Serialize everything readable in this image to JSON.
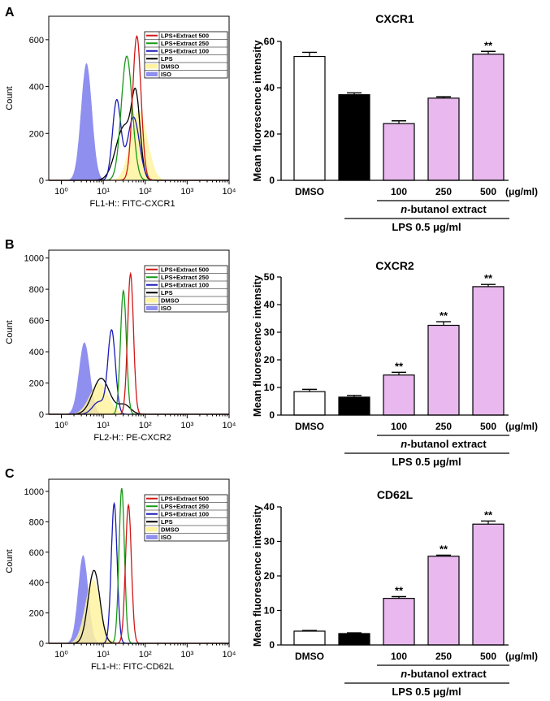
{
  "panel_letters": [
    "A",
    "B",
    "C"
  ],
  "colors": {
    "iso": "#8f8ff0",
    "dmso": "#fff3a0",
    "lps": "#000000",
    "extract100": "#1a1ab8",
    "extract250": "#159a15",
    "extract500": "#d01818",
    "bar_lps": "#000000",
    "bar_dmso": "#ffffff",
    "bar_extract": "#e8b8ee"
  },
  "histograms": [
    {
      "xlabel": "FL1-H:: FITC-CXCR1",
      "ylabel": "Count",
      "yticks": [
        0,
        200,
        400,
        600
      ],
      "ymax": 700,
      "xtick_labels": [
        "10⁰",
        "10¹",
        "10²",
        "10³",
        "10⁴"
      ],
      "legend": [
        "LPS+Extract 500",
        "LPS+Extract 250",
        "LPS+Extract 100",
        "LPS",
        "DMSO",
        "ISO"
      ],
      "peaks": {
        "iso": [
          [
            0.6,
            500,
            0.13
          ]
        ],
        "dmso": [
          [
            1.85,
            300,
            0.2
          ]
        ],
        "lps": [
          [
            1.5,
            230,
            0.2
          ],
          [
            1.78,
            300,
            0.1
          ]
        ],
        "extract100": [
          [
            1.32,
            340,
            0.1
          ],
          [
            1.72,
            270,
            0.14
          ]
        ],
        "extract250": [
          [
            1.56,
            530,
            0.13
          ]
        ],
        "extract500": [
          [
            1.8,
            615,
            0.1
          ]
        ]
      }
    },
    {
      "xlabel": "FL2-H:: PE-CXCR2",
      "ylabel": "Count",
      "yticks": [
        0,
        200,
        400,
        600,
        800,
        1000
      ],
      "ymax": 1050,
      "xtick_labels": [
        "10⁰",
        "10¹",
        "10²",
        "10³",
        "10⁴"
      ],
      "legend": [
        "LPS+Extract 500",
        "LPS+Extract 250",
        "LPS+Extract 100",
        "LPS",
        "DMSO",
        "ISO"
      ],
      "peaks": {
        "iso": [
          [
            0.55,
            460,
            0.13
          ]
        ],
        "dmso": [
          [
            0.9,
            200,
            0.22
          ]
        ],
        "lps": [
          [
            0.95,
            230,
            0.2
          ],
          [
            1.5,
            60,
            0.15
          ]
        ],
        "extract100": [
          [
            1.2,
            530,
            0.09
          ],
          [
            0.9,
            80,
            0.15
          ]
        ],
        "extract250": [
          [
            1.48,
            790,
            0.07
          ]
        ],
        "extract500": [
          [
            1.65,
            900,
            0.07
          ]
        ]
      }
    },
    {
      "xlabel": "FL1-H:: FITC-CD62L",
      "ylabel": "Count",
      "yticks": [
        0,
        200,
        400,
        600,
        800,
        1000
      ],
      "ymax": 1080,
      "xtick_labels": [
        "10⁰",
        "10¹",
        "10²",
        "10³",
        "10⁴"
      ],
      "legend": [
        "LPS+Extract 500",
        "LPS+Extract 250",
        "LPS+Extract 100",
        "LPS",
        "DMSO",
        "ISO"
      ],
      "peaks": {
        "iso": [
          [
            0.52,
            580,
            0.12
          ]
        ],
        "dmso": [
          [
            0.75,
            420,
            0.18
          ]
        ],
        "lps": [
          [
            0.78,
            480,
            0.14
          ]
        ],
        "extract100": [
          [
            1.26,
            920,
            0.07
          ]
        ],
        "extract250": [
          [
            1.44,
            1020,
            0.065
          ]
        ],
        "extract500": [
          [
            1.6,
            910,
            0.07
          ]
        ]
      }
    }
  ],
  "chart_data": [
    {
      "type": "bar",
      "title": "CXCR1",
      "ylabel": "Mean fluorescence intensity",
      "ylim": [
        0,
        60
      ],
      "yticks": [
        0,
        20,
        40,
        60
      ],
      "categories": [
        "DMSO",
        "",
        "100",
        "250",
        "500"
      ],
      "values": [
        53.5,
        37,
        24.5,
        35.5,
        54.5
      ],
      "errors": [
        1.8,
        0.8,
        1.2,
        0.6,
        1.2
      ],
      "significance": [
        "",
        "",
        "",
        "",
        "**"
      ],
      "unit_label": "(μg/ml)",
      "group_label_italic": "n",
      "group_label": "-butanol extract",
      "lps_label": "LPS 0.5 μg/ml"
    },
    {
      "type": "bar",
      "title": "CXCR2",
      "ylabel": "Mean fluorescence intensity",
      "ylim": [
        0,
        50
      ],
      "yticks": [
        0,
        10,
        20,
        30,
        40,
        50
      ],
      "categories": [
        "DMSO",
        "",
        "100",
        "250",
        "500"
      ],
      "values": [
        8.5,
        6.5,
        14.5,
        32.5,
        46.5
      ],
      "errors": [
        0.8,
        0.6,
        1.0,
        1.3,
        0.8
      ],
      "significance": [
        "",
        "",
        "**",
        "**",
        "**"
      ],
      "unit_label": "(μg/ml)",
      "group_label_italic": "n",
      "group_label": "-butanol extract",
      "lps_label": "LPS 0.5 μg/ml"
    },
    {
      "type": "bar",
      "title": "CD62L",
      "ylabel": "Mean fluorescence intensity",
      "ylim": [
        0,
        40
      ],
      "yticks": [
        0,
        10,
        20,
        30,
        40
      ],
      "categories": [
        "DMSO",
        "",
        "100",
        "250",
        "500"
      ],
      "values": [
        4,
        3.3,
        13.5,
        25.7,
        35
      ],
      "errors": [
        0.2,
        0.2,
        0.5,
        0.3,
        0.9
      ],
      "significance": [
        "",
        "",
        "**",
        "**",
        "**"
      ],
      "unit_label": "(μg/ml)",
      "group_label_italic": "n",
      "group_label": "-butanol extract",
      "lps_label": "LPS 0.5 μg/ml"
    }
  ]
}
